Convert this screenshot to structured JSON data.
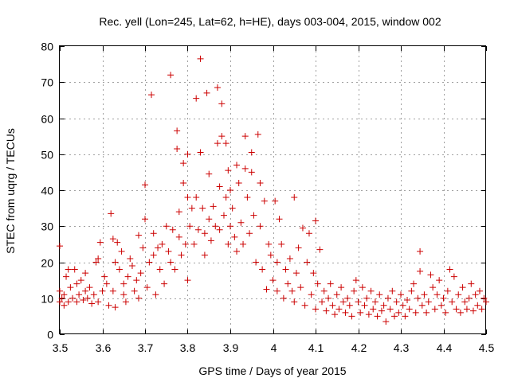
{
  "chart_data": {
    "type": "scatter",
    "title": "Rec. yell (Lon=245, Lat=62, h=HE), days 003-004, 2015, window 002",
    "xlabel": "GPS time / Days of year 2015",
    "ylabel": "STEC from uqrg / TECUs",
    "xlim": [
      3.5,
      4.5
    ],
    "ylim": [
      0,
      80
    ],
    "xticks": [
      3.5,
      3.6,
      3.7,
      3.8,
      3.9,
      4.0,
      4.1,
      4.2,
      4.3,
      4.4,
      4.5
    ],
    "xtick_labels": [
      "3.5",
      "3.6",
      "3.7",
      "3.8",
      "3.9",
      "4",
      "4.1",
      "4.2",
      "4.3",
      "4.4",
      "4.5"
    ],
    "yticks": [
      0,
      10,
      20,
      30,
      40,
      50,
      60,
      70,
      80
    ],
    "ytick_labels": [
      "0",
      "10",
      "20",
      "30",
      "40",
      "50",
      "60",
      "70",
      "80"
    ],
    "grid": true,
    "marker": "+",
    "color": "#cc0000",
    "series": [
      {
        "name": "STEC",
        "points": [
          [
            3.5,
            24.5
          ],
          [
            3.5,
            12
          ],
          [
            3.5,
            9
          ],
          [
            3.505,
            10
          ],
          [
            3.51,
            11
          ],
          [
            3.51,
            8
          ],
          [
            3.515,
            16
          ],
          [
            3.52,
            18
          ],
          [
            3.52,
            9
          ],
          [
            3.525,
            13
          ],
          [
            3.53,
            10
          ],
          [
            3.535,
            18
          ],
          [
            3.54,
            14
          ],
          [
            3.54,
            9
          ],
          [
            3.545,
            11
          ],
          [
            3.55,
            15
          ],
          [
            3.555,
            9.5
          ],
          [
            3.56,
            12
          ],
          [
            3.56,
            17
          ],
          [
            3.565,
            10
          ],
          [
            3.57,
            13
          ],
          [
            3.575,
            8.5
          ],
          [
            3.58,
            11
          ],
          [
            3.585,
            20
          ],
          [
            3.59,
            21
          ],
          [
            3.59,
            9
          ],
          [
            3.595,
            25.5
          ],
          [
            3.6,
            12
          ],
          [
            3.605,
            16
          ],
          [
            3.61,
            14
          ],
          [
            3.615,
            8
          ],
          [
            3.62,
            33.5
          ],
          [
            3.625,
            26.5
          ],
          [
            3.625,
            12
          ],
          [
            3.63,
            20
          ],
          [
            3.63,
            7.5
          ],
          [
            3.635,
            25.5
          ],
          [
            3.64,
            18
          ],
          [
            3.645,
            23
          ],
          [
            3.65,
            14
          ],
          [
            3.65,
            11
          ],
          [
            3.655,
            9
          ],
          [
            3.66,
            16
          ],
          [
            3.665,
            21
          ],
          [
            3.67,
            19
          ],
          [
            3.675,
            12
          ],
          [
            3.68,
            15
          ],
          [
            3.685,
            27.5
          ],
          [
            3.685,
            10
          ],
          [
            3.69,
            17
          ],
          [
            3.695,
            24
          ],
          [
            3.7,
            41.5
          ],
          [
            3.7,
            32
          ],
          [
            3.705,
            13
          ],
          [
            3.71,
            20
          ],
          [
            3.715,
            66.5
          ],
          [
            3.72,
            28
          ],
          [
            3.72,
            22
          ],
          [
            3.725,
            11
          ],
          [
            3.73,
            24
          ],
          [
            3.735,
            18
          ],
          [
            3.74,
            25
          ],
          [
            3.745,
            14
          ],
          [
            3.75,
            30
          ],
          [
            3.755,
            23
          ],
          [
            3.76,
            72
          ],
          [
            3.76,
            20
          ],
          [
            3.765,
            29
          ],
          [
            3.77,
            18
          ],
          [
            3.775,
            56.5
          ],
          [
            3.775,
            51.5
          ],
          [
            3.78,
            34
          ],
          [
            3.78,
            27
          ],
          [
            3.785,
            22
          ],
          [
            3.79,
            47.5
          ],
          [
            3.79,
            42
          ],
          [
            3.795,
            25
          ],
          [
            3.8,
            50
          ],
          [
            3.8,
            38
          ],
          [
            3.8,
            15
          ],
          [
            3.805,
            30
          ],
          [
            3.81,
            35
          ],
          [
            3.815,
            25
          ],
          [
            3.82,
            65.5
          ],
          [
            3.82,
            38
          ],
          [
            3.825,
            29
          ],
          [
            3.83,
            76.5
          ],
          [
            3.83,
            50.5
          ],
          [
            3.835,
            35
          ],
          [
            3.84,
            28
          ],
          [
            3.84,
            22
          ],
          [
            3.845,
            67
          ],
          [
            3.85,
            44.5
          ],
          [
            3.85,
            32
          ],
          [
            3.855,
            26
          ],
          [
            3.86,
            35.5
          ],
          [
            3.865,
            30
          ],
          [
            3.87,
            68.5
          ],
          [
            3.87,
            53
          ],
          [
            3.875,
            41
          ],
          [
            3.875,
            29
          ],
          [
            3.88,
            64
          ],
          [
            3.88,
            55
          ],
          [
            3.885,
            33
          ],
          [
            3.89,
            53
          ],
          [
            3.89,
            38
          ],
          [
            3.895,
            45.5
          ],
          [
            3.895,
            25
          ],
          [
            3.9,
            40
          ],
          [
            3.9,
            30
          ],
          [
            3.905,
            35
          ],
          [
            3.91,
            27
          ],
          [
            3.915,
            47
          ],
          [
            3.915,
            23
          ],
          [
            3.92,
            42
          ],
          [
            3.925,
            31
          ],
          [
            3.93,
            25
          ],
          [
            3.935,
            55
          ],
          [
            3.935,
            46
          ],
          [
            3.94,
            38
          ],
          [
            3.945,
            28
          ],
          [
            3.95,
            50.5
          ],
          [
            3.95,
            45
          ],
          [
            3.955,
            33
          ],
          [
            3.96,
            20
          ],
          [
            3.965,
            55.5
          ],
          [
            3.97,
            42
          ],
          [
            3.97,
            30
          ],
          [
            3.975,
            18
          ],
          [
            3.98,
            37
          ],
          [
            3.985,
            12.5
          ],
          [
            3.99,
            25
          ],
          [
            3.995,
            22
          ],
          [
            4.0,
            15
          ],
          [
            4.005,
            37
          ],
          [
            4.01,
            20
          ],
          [
            4.01,
            12
          ],
          [
            4.015,
            32
          ],
          [
            4.02,
            25
          ],
          [
            4.025,
            10
          ],
          [
            4.03,
            18
          ],
          [
            4.035,
            14
          ],
          [
            4.04,
            21
          ],
          [
            4.045,
            12
          ],
          [
            4.05,
            38
          ],
          [
            4.05,
            9
          ],
          [
            4.055,
            17
          ],
          [
            4.06,
            24
          ],
          [
            4.065,
            13
          ],
          [
            4.07,
            29.5
          ],
          [
            4.075,
            8
          ],
          [
            4.08,
            20
          ],
          [
            4.085,
            28
          ],
          [
            4.09,
            11
          ],
          [
            4.095,
            17
          ],
          [
            4.1,
            31.5
          ],
          [
            4.1,
            7
          ],
          [
            4.105,
            14
          ],
          [
            4.11,
            23.5
          ],
          [
            4.115,
            9
          ],
          [
            4.12,
            12
          ],
          [
            4.125,
            6.5
          ],
          [
            4.13,
            10
          ],
          [
            4.135,
            14
          ],
          [
            4.14,
            8
          ],
          [
            4.145,
            5.5
          ],
          [
            4.15,
            11
          ],
          [
            4.155,
            7
          ],
          [
            4.16,
            13
          ],
          [
            4.165,
            9
          ],
          [
            4.17,
            6
          ],
          [
            4.175,
            10
          ],
          [
            4.18,
            8
          ],
          [
            4.185,
            5
          ],
          [
            4.19,
            12
          ],
          [
            4.195,
            15
          ],
          [
            4.2,
            9
          ],
          [
            4.205,
            6
          ],
          [
            4.21,
            13
          ],
          [
            4.215,
            8
          ],
          [
            4.22,
            10
          ],
          [
            4.225,
            5.5
          ],
          [
            4.23,
            12
          ],
          [
            4.235,
            7
          ],
          [
            4.24,
            9
          ],
          [
            4.245,
            5
          ],
          [
            4.25,
            11
          ],
          [
            4.255,
            6.5
          ],
          [
            4.26,
            8
          ],
          [
            4.265,
            3.5
          ],
          [
            4.27,
            10
          ],
          [
            4.275,
            7
          ],
          [
            4.28,
            12
          ],
          [
            4.285,
            5
          ],
          [
            4.29,
            9
          ],
          [
            4.295,
            6
          ],
          [
            4.3,
            11
          ],
          [
            4.305,
            8
          ],
          [
            4.31,
            5
          ],
          [
            4.315,
            9.5
          ],
          [
            4.32,
            7
          ],
          [
            4.325,
            12
          ],
          [
            4.33,
            14
          ],
          [
            4.335,
            6
          ],
          [
            4.34,
            10
          ],
          [
            4.345,
            23
          ],
          [
            4.345,
            17.5
          ],
          [
            4.35,
            8
          ],
          [
            4.355,
            11
          ],
          [
            4.36,
            6
          ],
          [
            4.365,
            9
          ],
          [
            4.37,
            16.5
          ],
          [
            4.375,
            13
          ],
          [
            4.38,
            7
          ],
          [
            4.385,
            11
          ],
          [
            4.39,
            15
          ],
          [
            4.395,
            8
          ],
          [
            4.4,
            10
          ],
          [
            4.405,
            6
          ],
          [
            4.41,
            12
          ],
          [
            4.415,
            18
          ],
          [
            4.42,
            9
          ],
          [
            4.425,
            16
          ],
          [
            4.43,
            7
          ],
          [
            4.435,
            11
          ],
          [
            4.44,
            6
          ],
          [
            4.445,
            13
          ],
          [
            4.45,
            9
          ],
          [
            4.455,
            7
          ],
          [
            4.46,
            10
          ],
          [
            4.465,
            14
          ],
          [
            4.47,
            6.5
          ],
          [
            4.475,
            11
          ],
          [
            4.48,
            8
          ],
          [
            4.485,
            12
          ],
          [
            4.49,
            7
          ],
          [
            4.495,
            10
          ],
          [
            4.5,
            9
          ]
        ]
      }
    ]
  }
}
